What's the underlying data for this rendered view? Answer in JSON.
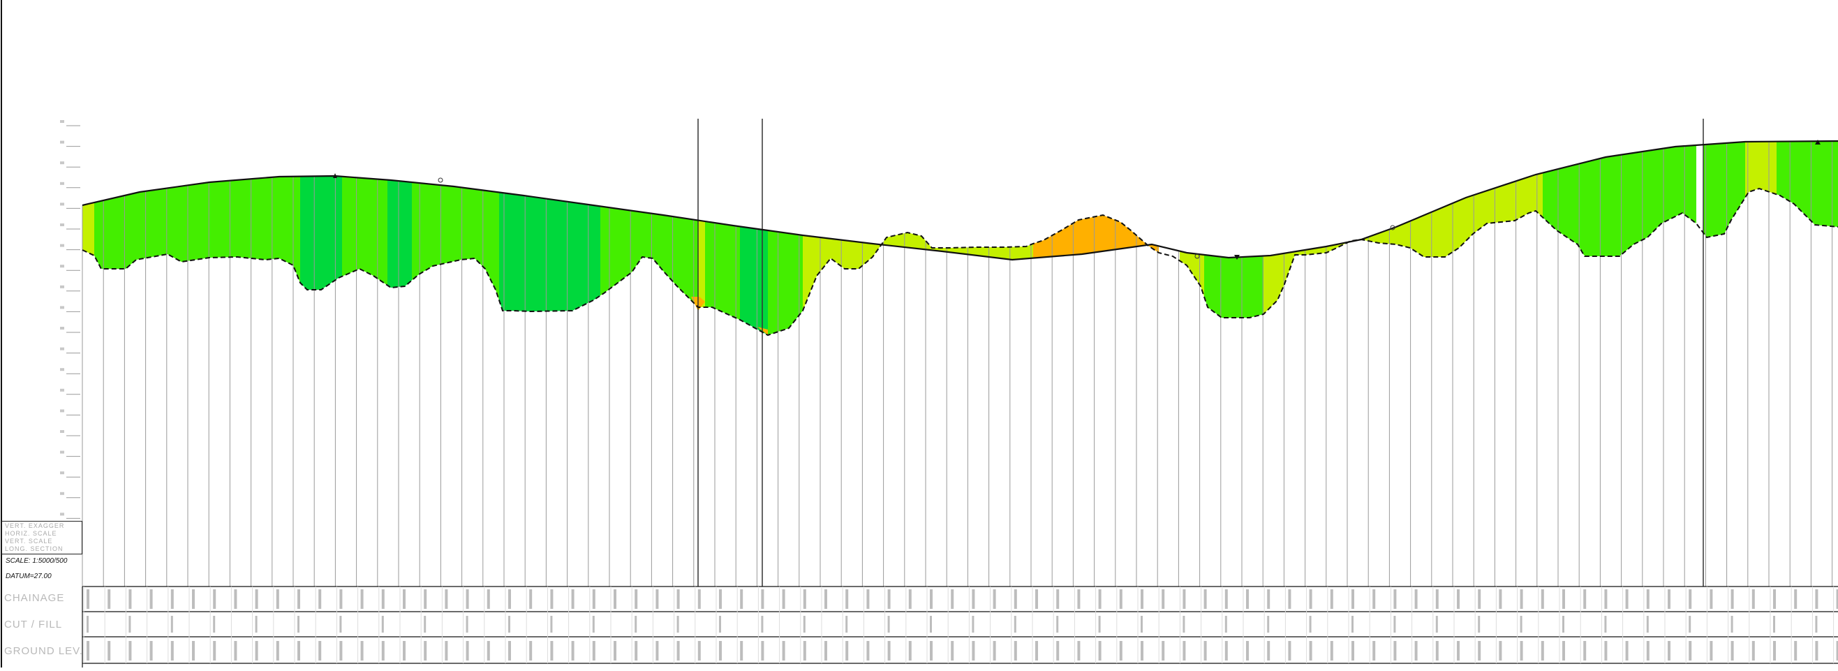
{
  "profile": {
    "legend_lines": [
      "VERT. EXAGGER",
      "HORIZ. SCALE",
      "VERT. SCALE",
      "LONG. SECTION"
    ],
    "scale_label": "SCALE: 1:5000/500",
    "datum_label": "DATUM=27.00",
    "rows": {
      "chainage_label": "CHAINAGE",
      "cut_fill_label": "CUT / FILL",
      "ground_level_label": "GROUND LEV."
    },
    "colors": {
      "cut_light": "#c4f000",
      "cut_medium": "#44ee00",
      "cut_dark": "#00d83c",
      "fill": "#ffb000",
      "line": "#111111",
      "grid": "#9a9a9a",
      "text_faint": "#bdbdbd"
    }
  }
}
